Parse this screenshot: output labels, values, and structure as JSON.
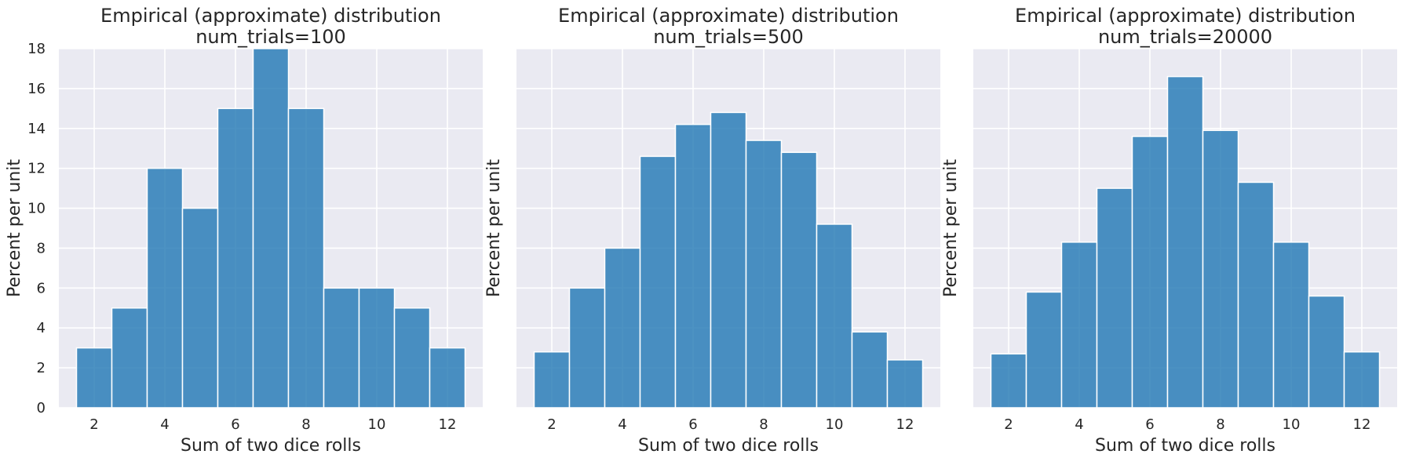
{
  "chart_data": [
    {
      "type": "bar",
      "title": "Empirical (approximate) distribution",
      "subtitle": "num_trials=100",
      "xlabel": "Sum of two dice rolls",
      "ylabel": "Percent per unit",
      "x": [
        2,
        3,
        4,
        5,
        6,
        7,
        8,
        9,
        10,
        11,
        12
      ],
      "values": [
        3,
        5,
        12,
        10,
        15,
        18,
        15,
        6,
        6,
        5,
        3
      ],
      "xlim": [
        1.0,
        13.0
      ],
      "ylim": [
        0,
        18
      ],
      "xticks": [
        2,
        4,
        6,
        8,
        10,
        12
      ],
      "yticks": [
        0,
        2,
        4,
        6,
        8,
        10,
        12,
        14,
        16,
        18
      ],
      "show_ytick_labels": true,
      "grid": true,
      "bar_color": "#1f77b4"
    },
    {
      "type": "bar",
      "title": "Empirical (approximate) distribution",
      "subtitle": "num_trials=500",
      "xlabel": "Sum of two dice rolls",
      "ylabel": "Percent per unit",
      "x": [
        2,
        3,
        4,
        5,
        6,
        7,
        8,
        9,
        10,
        11,
        12
      ],
      "values": [
        2.8,
        6.0,
        8.0,
        12.6,
        14.2,
        14.8,
        13.4,
        12.8,
        9.2,
        3.8,
        2.4
      ],
      "xlim": [
        1.0,
        13.0
      ],
      "ylim": [
        0,
        18
      ],
      "xticks": [
        2,
        4,
        6,
        8,
        10,
        12
      ],
      "yticks": [
        0,
        2,
        4,
        6,
        8,
        10,
        12,
        14,
        16,
        18
      ],
      "show_ytick_labels": false,
      "grid": true,
      "bar_color": "#1f77b4"
    },
    {
      "type": "bar",
      "title": "Empirical (approximate) distribution",
      "subtitle": "num_trials=20000",
      "xlabel": "Sum of two dice rolls",
      "ylabel": "Percent per unit",
      "x": [
        2,
        3,
        4,
        5,
        6,
        7,
        8,
        9,
        10,
        11,
        12
      ],
      "values": [
        2.7,
        5.8,
        8.3,
        11.0,
        13.6,
        16.6,
        13.9,
        11.3,
        8.3,
        5.6,
        2.8
      ],
      "xlim": [
        1.0,
        13.0
      ],
      "ylim": [
        0,
        18
      ],
      "xticks": [
        2,
        4,
        6,
        8,
        10,
        12
      ],
      "yticks": [
        0,
        2,
        4,
        6,
        8,
        10,
        12,
        14,
        16,
        18
      ],
      "show_ytick_labels": false,
      "grid": true,
      "bar_color": "#1f77b4"
    }
  ]
}
